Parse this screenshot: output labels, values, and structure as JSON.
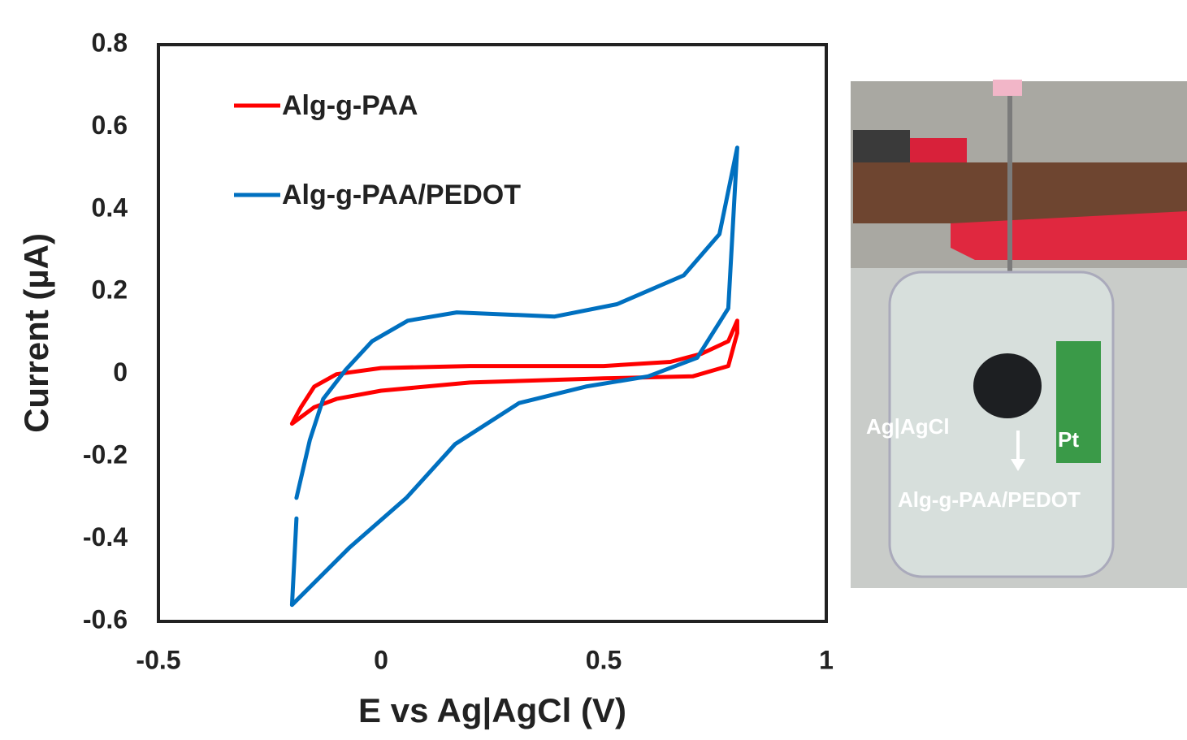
{
  "chart_data": {
    "type": "line",
    "x_label": "E vs Ag|AgCl (V)",
    "y_label": "Current (µA)",
    "xlim": [
      -0.5,
      1
    ],
    "xticks": [
      -0.5,
      0,
      0.5,
      1
    ],
    "ylim": [
      -0.6,
      0.8
    ],
    "yticks": [
      -0.6,
      -0.4,
      -0.2,
      0,
      0.2,
      0.4,
      0.6,
      0.8
    ],
    "grid": false,
    "legend": "upper left",
    "series": [
      {
        "name": "Alg-g-PAA",
        "color": "#ff0000",
        "x": [
          -0.2,
          -0.18,
          -0.15,
          -0.1,
          0,
          0.2,
          0.5,
          0.65,
          0.72,
          0.78,
          0.8,
          0.8,
          0.78,
          0.7,
          0.5,
          0.2,
          0,
          -0.1,
          -0.15,
          -0.2
        ],
        "values": [
          -0.12,
          -0.08,
          -0.03,
          0.0,
          0.015,
          0.02,
          0.02,
          0.03,
          0.05,
          0.08,
          0.13,
          0.1,
          0.02,
          -0.005,
          -0.01,
          -0.02,
          -0.04,
          -0.06,
          -0.08,
          -0.12
        ]
      },
      {
        "name": "Alg-g-PAA/PEDOT",
        "color": "#0070c0",
        "x": [
          -0.19,
          -0.16,
          -0.13,
          -0.08,
          -0.02,
          0.06,
          0.17,
          0.39,
          0.53,
          0.68,
          0.76,
          0.8,
          0.78,
          0.71,
          0.6,
          0.46,
          0.31,
          0.166,
          0.057,
          -0.07,
          -0.2,
          -0.19
        ],
        "values": [
          -0.3,
          -0.16,
          -0.06,
          0.01,
          0.08,
          0.13,
          0.15,
          0.14,
          0.17,
          0.24,
          0.34,
          0.55,
          0.16,
          0.04,
          -0.005,
          -0.03,
          -0.07,
          -0.17,
          -0.3,
          -0.42,
          -0.56,
          -0.35
        ]
      }
    ],
    "photo_labels": [
      "Ag|AgCl",
      "Pt",
      "Alg-g-PAA/PEDOT"
    ]
  }
}
